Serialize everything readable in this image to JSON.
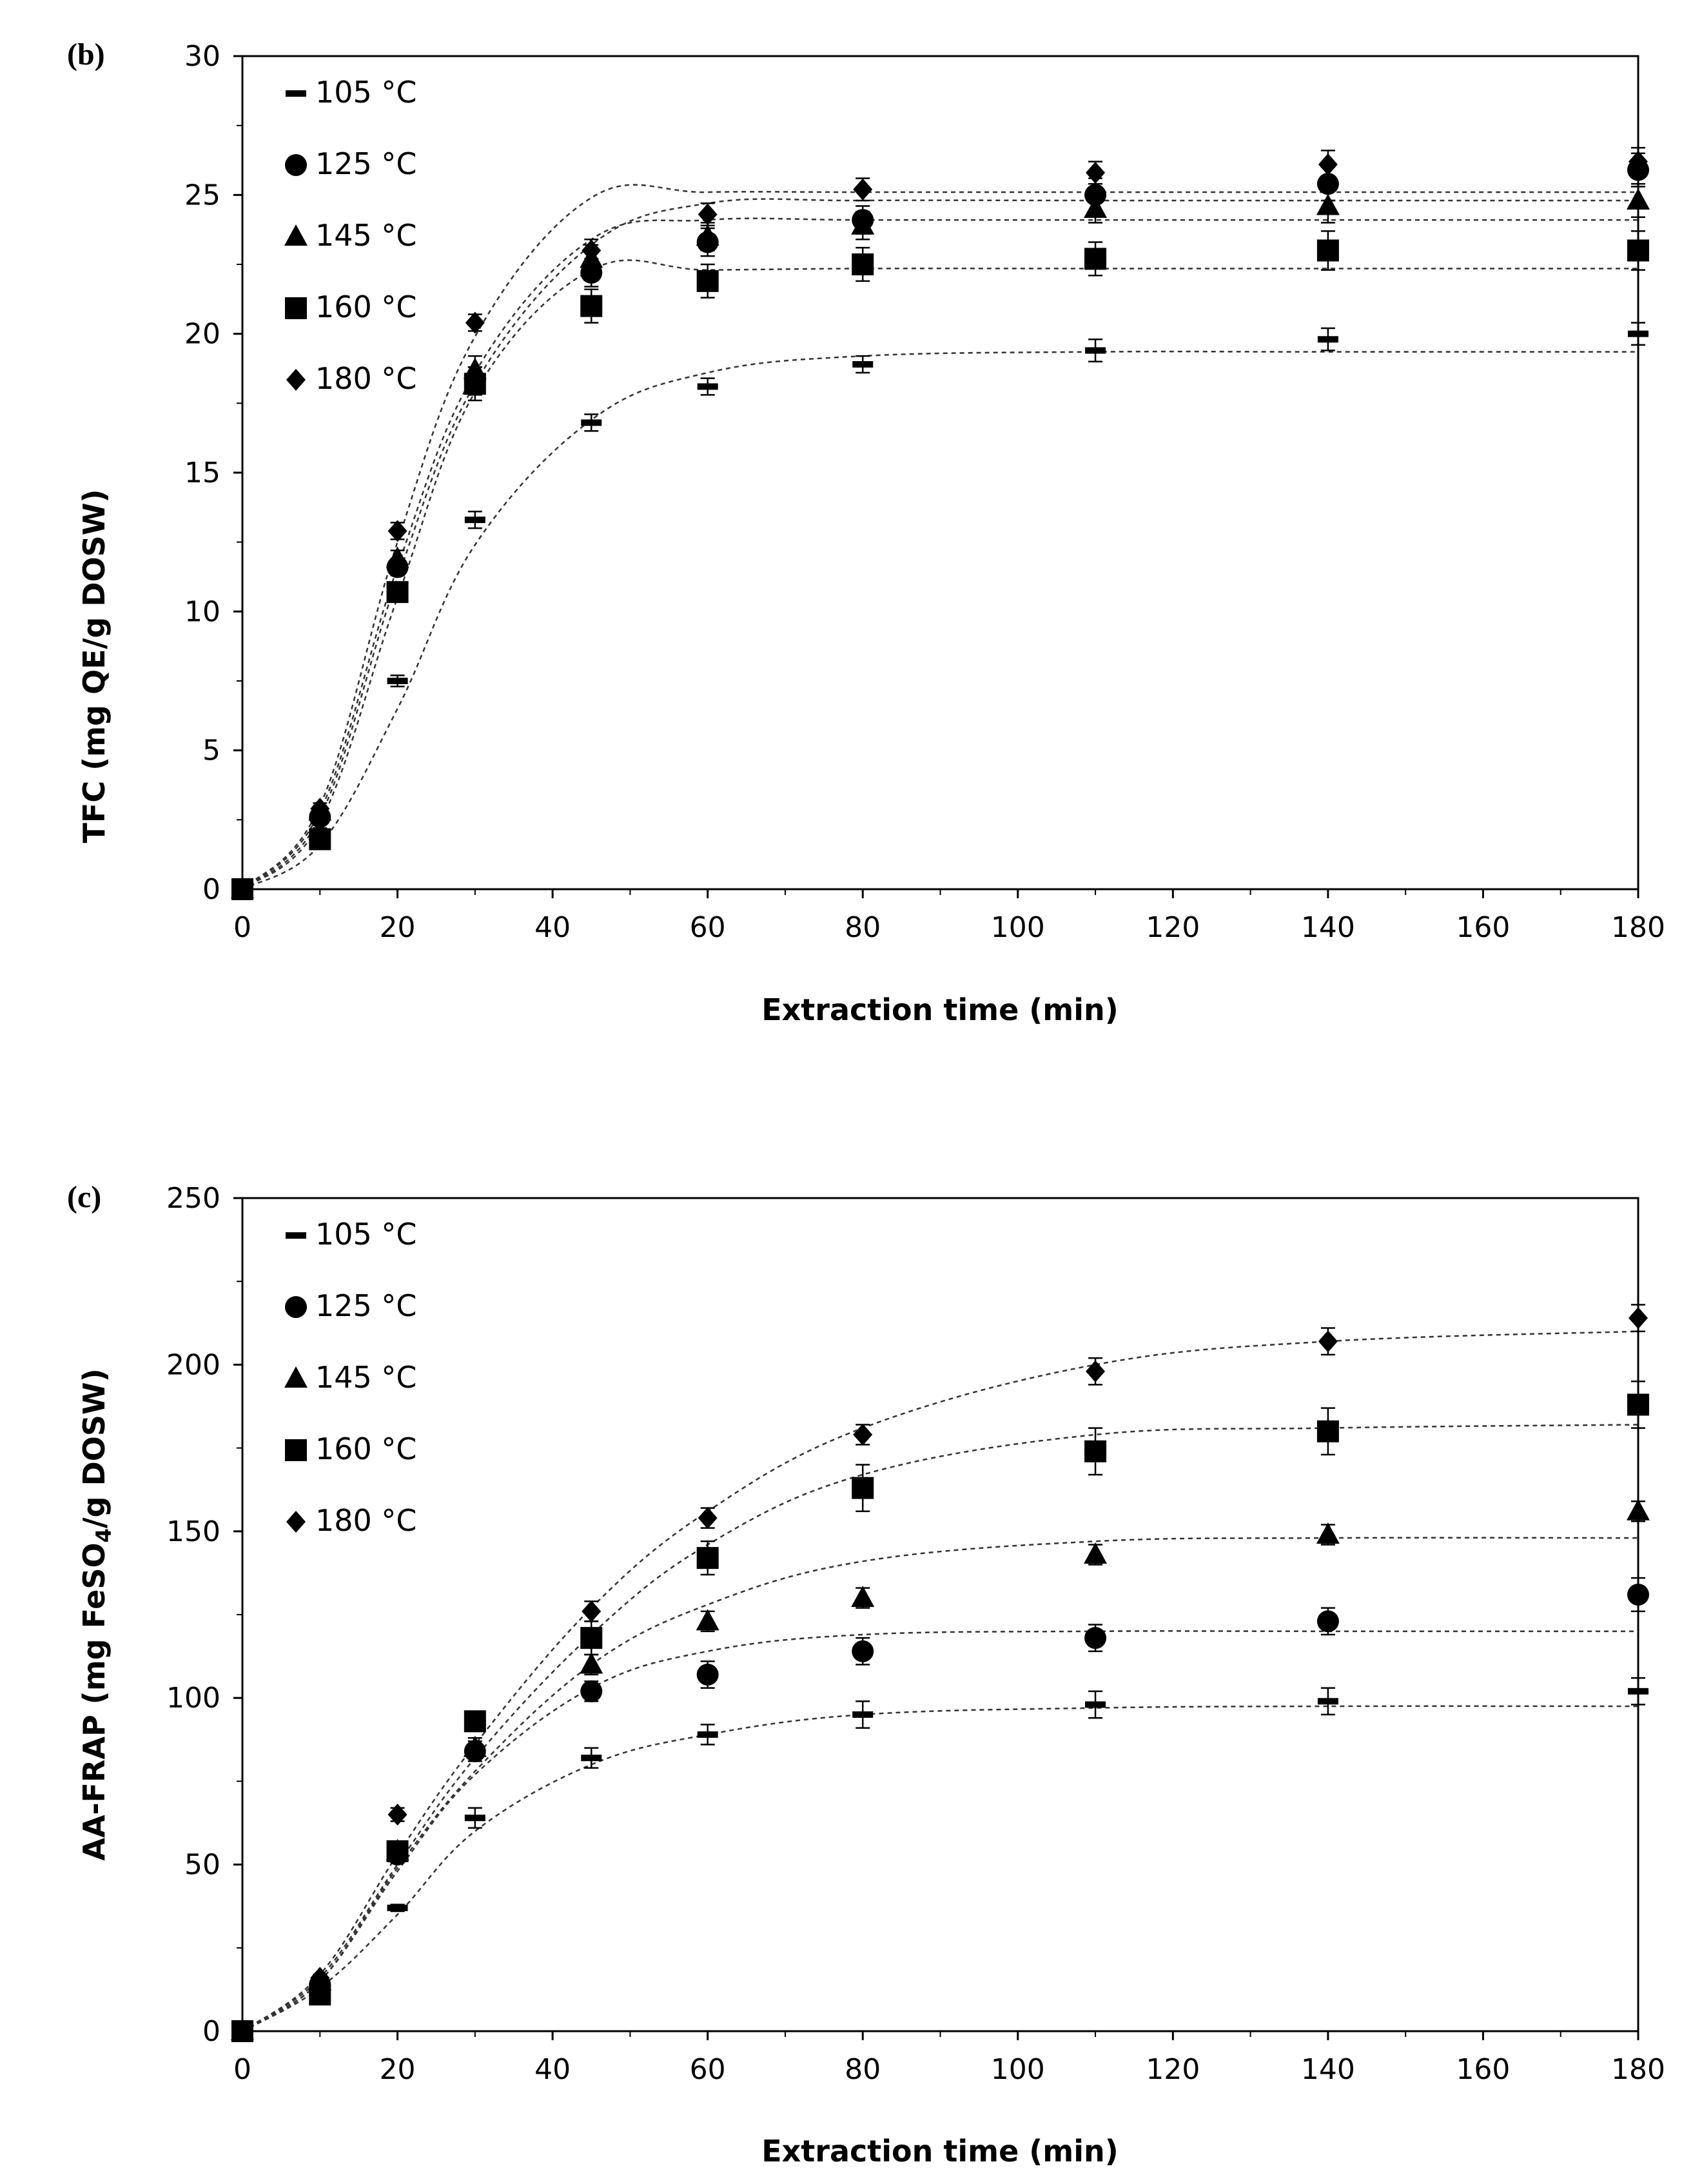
{
  "chart_data": [
    {
      "panel_label": "(b)",
      "type": "scatter",
      "title": "",
      "xlabel": "Extraction time (min)",
      "ylabel": "TFC (mg QE/g DOSW)",
      "ylabel_sub": "",
      "ylabel_tail": "",
      "xlim": [
        0,
        180
      ],
      "ylim": [
        0,
        30
      ],
      "xticks": [
        0,
        20,
        40,
        60,
        80,
        100,
        120,
        140,
        160,
        180
      ],
      "yticks": [
        0,
        5,
        10,
        15,
        20,
        25,
        30
      ],
      "x": [
        0,
        10,
        20,
        30,
        45,
        60,
        80,
        110,
        140,
        180
      ],
      "legend_position": "top-left",
      "series": [
        {
          "name": "105 °C",
          "marker": "dash",
          "values": [
            0,
            2.0,
            7.5,
            13.3,
            16.8,
            18.1,
            18.9,
            19.4,
            19.8,
            20.0
          ],
          "errors": [
            0,
            0.2,
            0.2,
            0.3,
            0.3,
            0.3,
            0.3,
            0.4,
            0.4,
            0.4
          ],
          "fit": [
            0,
            1.6,
            6.5,
            12.4,
            16.9,
            18.6,
            19.2,
            19.35,
            19.35,
            19.35
          ]
        },
        {
          "name": "125 °C",
          "marker": "circle",
          "values": [
            0,
            2.6,
            11.6,
            18.3,
            22.2,
            23.3,
            24.1,
            25.0,
            25.4,
            25.9
          ],
          "errors": [
            0,
            0.2,
            0.3,
            0.5,
            0.5,
            0.5,
            0.5,
            0.6,
            0.6,
            0.6
          ],
          "fit": [
            0,
            2.6,
            11.2,
            18.2,
            23.2,
            24.7,
            24.8,
            24.8,
            24.8,
            24.8
          ]
        },
        {
          "name": "145 °C",
          "marker": "triangle",
          "values": [
            0,
            2.8,
            11.9,
            18.7,
            22.7,
            23.5,
            23.9,
            24.5,
            24.6,
            24.8
          ],
          "errors": [
            0,
            0.2,
            0.3,
            0.5,
            0.5,
            0.5,
            0.5,
            0.5,
            0.6,
            0.6
          ],
          "fit": [
            0,
            2.8,
            11.6,
            18.6,
            23.4,
            24.1,
            24.1,
            24.1,
            24.1,
            24.1
          ]
        },
        {
          "name": "160 °C",
          "marker": "square",
          "values": [
            0,
            1.8,
            10.7,
            18.2,
            21.0,
            21.9,
            22.5,
            22.7,
            23.0,
            23.0
          ],
          "errors": [
            0,
            0.2,
            0.3,
            0.6,
            0.6,
            0.6,
            0.6,
            0.6,
            0.7,
            0.7
          ],
          "fit": [
            0,
            2.4,
            10.5,
            17.9,
            22.3,
            22.3,
            22.35,
            22.35,
            22.35,
            22.35
          ]
        },
        {
          "name": "180 °C",
          "marker": "diamond",
          "values": [
            0,
            2.9,
            12.9,
            20.4,
            23.0,
            24.3,
            25.2,
            25.8,
            26.1,
            26.2
          ],
          "errors": [
            0,
            0.2,
            0.3,
            0.3,
            0.4,
            0.4,
            0.4,
            0.4,
            0.5,
            0.5
          ],
          "fit": [
            0,
            3.0,
            12.5,
            19.9,
            24.9,
            25.1,
            25.1,
            25.1,
            25.1,
            25.1
          ]
        }
      ]
    },
    {
      "panel_label": "(c)",
      "type": "scatter",
      "title": "",
      "xlabel": "Extraction time (min)",
      "ylabel": "AA-FRAP (mg FeSO",
      "ylabel_sub": "4",
      "ylabel_tail": "/g DOSW)",
      "xlim": [
        0,
        180
      ],
      "ylim": [
        0,
        250
      ],
      "xticks": [
        0,
        20,
        40,
        60,
        80,
        100,
        120,
        140,
        160,
        180
      ],
      "yticks": [
        0,
        50,
        100,
        150,
        200,
        250
      ],
      "x": [
        0,
        10,
        20,
        30,
        45,
        60,
        80,
        110,
        140,
        180
      ],
      "legend_position": "top-left",
      "series": [
        {
          "name": "105 °C",
          "marker": "dash",
          "values": [
            0,
            14,
            37,
            64,
            82,
            89,
            95,
            98,
            99,
            102
          ],
          "errors": [
            0,
            1,
            1,
            3,
            3,
            3,
            4,
            4,
            4,
            4
          ],
          "fit": [
            0,
            13,
            35,
            60,
            80,
            89,
            95,
            97,
            97.5,
            97.5
          ]
        },
        {
          "name": "125 °C",
          "marker": "circle",
          "values": [
            0,
            14,
            53,
            84,
            102,
            107,
            114,
            118,
            123,
            131
          ],
          "errors": [
            0,
            1,
            2,
            3,
            3,
            4,
            4,
            4,
            4,
            5
          ],
          "fit": [
            0,
            15,
            48,
            77,
            103,
            114,
            119,
            120,
            120,
            120
          ]
        },
        {
          "name": "145 °C",
          "marker": "triangle",
          "values": [
            0,
            15,
            54,
            85,
            110,
            123,
            130,
            143,
            149,
            156
          ],
          "errors": [
            0,
            1,
            2,
            3,
            3,
            3,
            3,
            3,
            3,
            3
          ],
          "fit": [
            0,
            15,
            49,
            78,
            110,
            128,
            141,
            147,
            148,
            148
          ]
        },
        {
          "name": "160 °C",
          "marker": "square",
          "values": [
            0,
            11,
            54,
            93,
            118,
            142,
            163,
            174,
            180,
            188
          ],
          "errors": [
            0,
            1,
            2,
            3,
            5,
            5,
            7,
            7,
            7,
            7
          ],
          "fit": [
            0,
            16,
            50,
            82,
            119,
            146,
            167,
            179,
            181,
            182
          ]
        },
        {
          "name": "180 °C",
          "marker": "diamond",
          "values": [
            0,
            16,
            65,
            93,
            126,
            154,
            179,
            198,
            207,
            214
          ],
          "errors": [
            0,
            1,
            2,
            2,
            3,
            3,
            3,
            4,
            4,
            4
          ],
          "fit": [
            0,
            17,
            53,
            86,
            127,
            156,
            181,
            200,
            207,
            210
          ]
        }
      ]
    }
  ]
}
